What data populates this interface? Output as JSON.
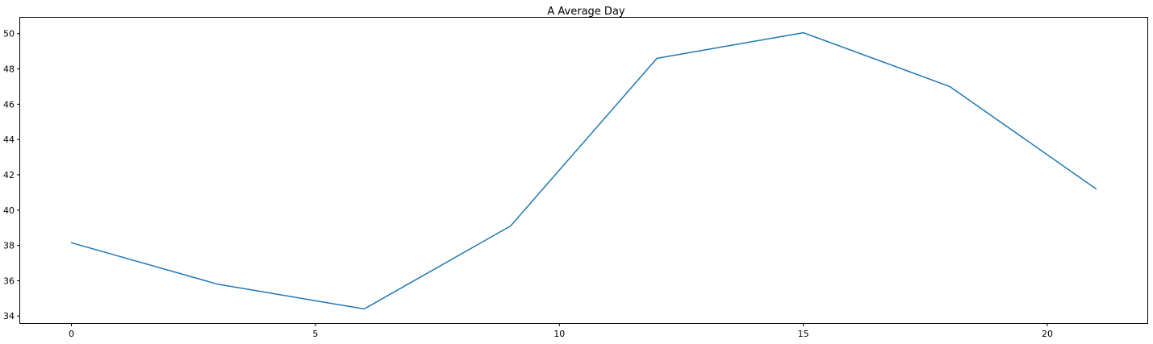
{
  "chart_data": {
    "type": "line",
    "title": "A Average Day",
    "xlabel": "",
    "ylabel": "",
    "xlim": [
      -1.05,
      22.05
    ],
    "ylim": [
      33.6,
      50.9
    ],
    "x_ticks": [
      0,
      5,
      10,
      15,
      20
    ],
    "y_ticks": [
      34,
      36,
      38,
      40,
      42,
      44,
      46,
      48,
      50
    ],
    "grid": false,
    "legend": "none",
    "series": [
      {
        "color": "#1f77b4",
        "x": [
          0,
          3,
          6,
          9,
          12,
          15,
          18,
          21
        ],
        "y": [
          38.15,
          35.8,
          34.4,
          39.1,
          48.6,
          50.05,
          47.0,
          41.2
        ]
      }
    ]
  }
}
